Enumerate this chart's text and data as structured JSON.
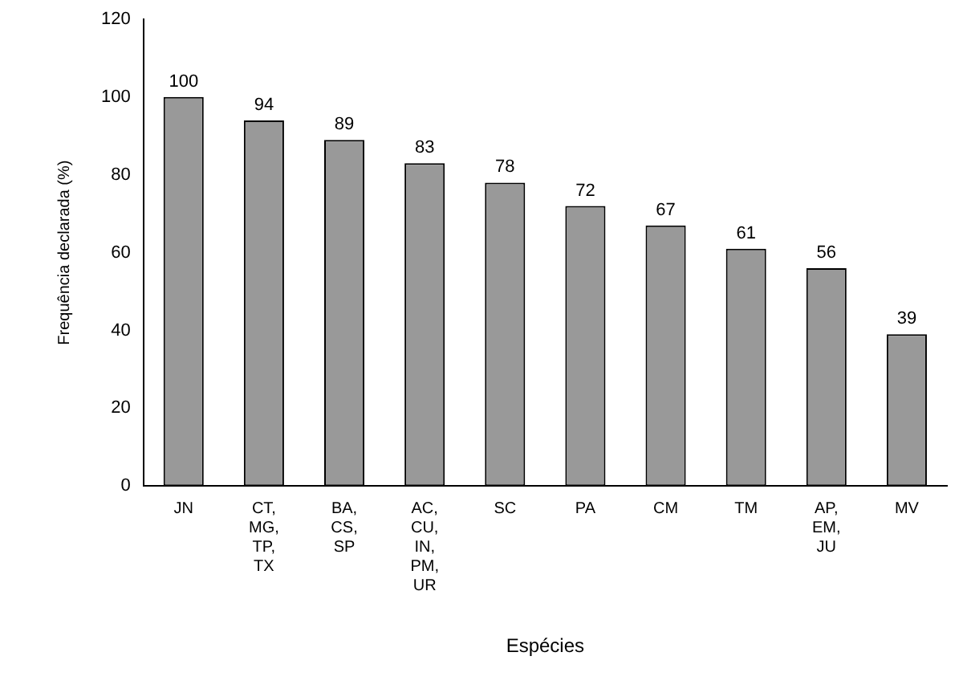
{
  "chart_data": {
    "type": "bar",
    "xlabel": "Espécies",
    "ylabel": "Frequência declarada (%)",
    "categories": [
      "JN",
      "CT, MG, TP, TX",
      "BA, CS, SP",
      "AC, CU, IN, PM, UR",
      "SC",
      "PA",
      "CM",
      "TM",
      "AP, EM, JU",
      "MV"
    ],
    "values": [
      100,
      94,
      89,
      83,
      78,
      72,
      67,
      61,
      56,
      39
    ],
    "color": "#999999",
    "ylim": [
      0,
      120
    ],
    "yticks": [
      0,
      20,
      40,
      60,
      80,
      100,
      120
    ],
    "data_labels": true,
    "grid": false,
    "legend": false
  }
}
